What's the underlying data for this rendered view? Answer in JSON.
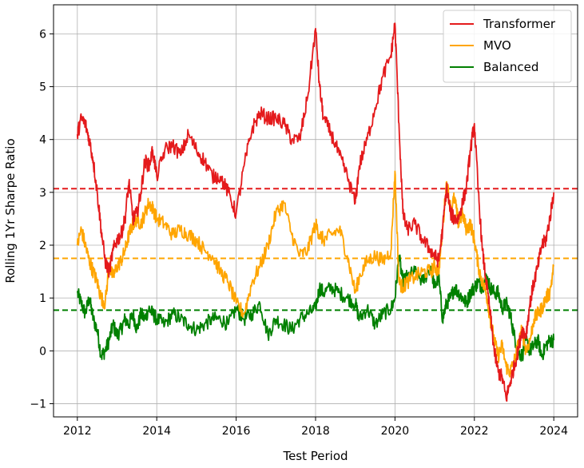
{
  "chart_data": {
    "type": "line",
    "title": "",
    "xlabel": "Test Period",
    "ylabel": "Rolling 1Yr Sharpe Ratio",
    "xlim": [
      2011.4,
      2024.6
    ],
    "ylim": [
      -1.25,
      6.55
    ],
    "x_ticks": [
      2012,
      2014,
      2016,
      2018,
      2020,
      2022,
      2024
    ],
    "y_ticks": [
      -1,
      0,
      1,
      2,
      3,
      4,
      5,
      6
    ],
    "grid": true,
    "legend_position": "top-right",
    "series": [
      {
        "name": "Transformer",
        "color": "#e41a1c",
        "mean": 3.07,
        "x": [
          2012.0,
          2012.1,
          2012.2,
          2012.3,
          2012.4,
          2012.5,
          2012.6,
          2012.7,
          2012.8,
          2012.9,
          2013.0,
          2013.1,
          2013.2,
          2013.3,
          2013.4,
          2013.5,
          2013.6,
          2013.7,
          2013.8,
          2013.9,
          2014.0,
          2014.2,
          2014.4,
          2014.6,
          2014.8,
          2015.0,
          2015.2,
          2015.4,
          2015.6,
          2015.8,
          2016.0,
          2016.2,
          2016.4,
          2016.6,
          2016.8,
          2017.0,
          2017.2,
          2017.4,
          2017.6,
          2017.8,
          2018.0,
          2018.1,
          2018.2,
          2018.4,
          2018.6,
          2018.8,
          2019.0,
          2019.1,
          2019.3,
          2019.5,
          2019.7,
          2019.9,
          2020.0,
          2020.1,
          2020.2,
          2020.3,
          2020.5,
          2020.7,
          2020.9,
          2021.0,
          2021.1,
          2021.2,
          2021.3,
          2021.4,
          2021.5,
          2021.6,
          2021.7,
          2021.8,
          2021.9,
          2022.0,
          2022.1,
          2022.2,
          2022.3,
          2022.4,
          2022.5,
          2022.6,
          2022.7,
          2022.8,
          2022.9,
          2023.0,
          2023.1,
          2023.2,
          2023.3,
          2023.4,
          2023.5,
          2023.6,
          2023.7,
          2023.8,
          2023.9,
          2024.0
        ],
        "y": [
          4.1,
          4.4,
          4.3,
          4.0,
          3.6,
          3.0,
          2.3,
          1.7,
          1.5,
          1.9,
          2.1,
          2.2,
          2.5,
          3.2,
          2.5,
          2.6,
          3.0,
          3.6,
          3.5,
          3.8,
          3.3,
          3.8,
          3.9,
          3.7,
          4.1,
          3.8,
          3.6,
          3.3,
          3.3,
          3.0,
          2.6,
          3.5,
          4.2,
          4.5,
          4.4,
          4.4,
          4.3,
          4.0,
          4.0,
          4.8,
          6.1,
          5.0,
          4.4,
          4.1,
          3.7,
          3.3,
          2.8,
          3.5,
          4.0,
          4.6,
          5.2,
          5.6,
          6.2,
          4.3,
          2.6,
          2.3,
          2.4,
          2.1,
          1.9,
          1.8,
          1.7,
          2.3,
          3.1,
          2.6,
          2.5,
          2.5,
          2.8,
          3.1,
          3.8,
          4.3,
          3.0,
          1.9,
          1.3,
          0.7,
          0.0,
          -0.4,
          -0.5,
          -0.9,
          -0.6,
          -0.3,
          0.0,
          0.4,
          0.3,
          0.9,
          1.3,
          1.6,
          2.0,
          2.1,
          2.5,
          3.0
        ]
      },
      {
        "name": "MVO",
        "color": "#ffa500",
        "mean": 1.75,
        "x": [
          2012.0,
          2012.1,
          2012.2,
          2012.3,
          2012.4,
          2012.5,
          2012.6,
          2012.7,
          2012.8,
          2012.9,
          2013.0,
          2013.1,
          2013.2,
          2013.3,
          2013.4,
          2013.5,
          2013.6,
          2013.7,
          2013.8,
          2013.9,
          2014.0,
          2014.2,
          2014.4,
          2014.6,
          2014.8,
          2015.0,
          2015.2,
          2015.4,
          2015.6,
          2015.8,
          2016.0,
          2016.2,
          2016.4,
          2016.6,
          2016.8,
          2017.0,
          2017.2,
          2017.4,
          2017.6,
          2017.8,
          2018.0,
          2018.1,
          2018.2,
          2018.4,
          2018.6,
          2018.8,
          2019.0,
          2019.1,
          2019.3,
          2019.5,
          2019.7,
          2019.9,
          2020.0,
          2020.1,
          2020.2,
          2020.3,
          2020.5,
          2020.7,
          2020.9,
          2021.0,
          2021.1,
          2021.2,
          2021.3,
          2021.4,
          2021.5,
          2021.6,
          2021.7,
          2021.8,
          2021.9,
          2022.0,
          2022.1,
          2022.2,
          2022.3,
          2022.4,
          2022.5,
          2022.6,
          2022.7,
          2022.8,
          2022.9,
          2023.0,
          2023.1,
          2023.2,
          2023.3,
          2023.4,
          2023.5,
          2023.6,
          2023.7,
          2023.8,
          2023.9,
          2024.0
        ],
        "y": [
          2.0,
          2.3,
          2.0,
          1.7,
          1.5,
          1.3,
          1.0,
          0.9,
          1.6,
          1.4,
          1.6,
          1.7,
          1.9,
          2.2,
          2.4,
          2.5,
          2.4,
          2.6,
          2.8,
          2.7,
          2.5,
          2.4,
          2.2,
          2.3,
          2.2,
          2.1,
          1.9,
          1.8,
          1.5,
          1.3,
          0.9,
          0.7,
          1.3,
          1.6,
          2.0,
          2.6,
          2.8,
          2.2,
          1.8,
          1.9,
          2.4,
          2.2,
          2.1,
          2.2,
          2.3,
          1.8,
          1.1,
          1.4,
          1.7,
          1.8,
          1.7,
          1.9,
          3.4,
          1.3,
          1.2,
          1.3,
          1.4,
          1.5,
          1.5,
          1.6,
          1.5,
          2.3,
          3.2,
          2.7,
          2.9,
          2.4,
          2.6,
          2.3,
          2.4,
          2.1,
          1.6,
          1.3,
          1.1,
          0.6,
          0.2,
          -0.1,
          0.1,
          -0.3,
          -0.4,
          -0.2,
          0.1,
          0.4,
          0.0,
          0.2,
          0.6,
          0.7,
          0.8,
          1.0,
          1.1,
          1.6
        ]
      },
      {
        "name": "Balanced",
        "color": "#008000",
        "mean": 0.77,
        "x": [
          2012.0,
          2012.1,
          2012.2,
          2012.3,
          2012.4,
          2012.5,
          2012.6,
          2012.7,
          2012.8,
          2012.9,
          2013.0,
          2013.1,
          2013.2,
          2013.3,
          2013.4,
          2013.5,
          2013.6,
          2013.7,
          2013.8,
          2013.9,
          2014.0,
          2014.2,
          2014.4,
          2014.6,
          2014.8,
          2015.0,
          2015.2,
          2015.4,
          2015.6,
          2015.8,
          2016.0,
          2016.2,
          2016.4,
          2016.6,
          2016.8,
          2017.0,
          2017.2,
          2017.4,
          2017.6,
          2017.8,
          2018.0,
          2018.1,
          2018.2,
          2018.4,
          2018.6,
          2018.8,
          2019.0,
          2019.1,
          2019.3,
          2019.5,
          2019.7,
          2019.9,
          2020.0,
          2020.1,
          2020.2,
          2020.3,
          2020.5,
          2020.7,
          2020.9,
          2021.0,
          2021.1,
          2021.2,
          2021.3,
          2021.4,
          2021.5,
          2021.6,
          2021.7,
          2021.8,
          2021.9,
          2022.0,
          2022.1,
          2022.2,
          2022.3,
          2022.4,
          2022.5,
          2022.6,
          2022.7,
          2022.8,
          2022.9,
          2023.0,
          2023.1,
          2023.2,
          2023.3,
          2023.4,
          2023.5,
          2023.6,
          2023.7,
          2023.8,
          2023.9,
          2024.0
        ],
        "y": [
          1.1,
          0.9,
          0.7,
          1.0,
          0.6,
          0.4,
          -0.1,
          0.0,
          0.2,
          0.5,
          0.3,
          0.4,
          0.6,
          0.5,
          0.7,
          0.4,
          0.7,
          0.6,
          0.8,
          0.7,
          0.6,
          0.5,
          0.7,
          0.6,
          0.5,
          0.4,
          0.5,
          0.6,
          0.6,
          0.5,
          0.8,
          0.6,
          0.7,
          0.9,
          0.3,
          0.6,
          0.5,
          0.4,
          0.6,
          0.7,
          0.8,
          1.2,
          1.1,
          1.2,
          1.1,
          1.0,
          0.9,
          0.6,
          0.8,
          0.5,
          0.7,
          0.8,
          1.0,
          1.8,
          1.3,
          1.4,
          1.5,
          1.3,
          1.6,
          1.2,
          1.4,
          0.6,
          0.9,
          1.0,
          1.2,
          1.1,
          1.0,
          0.9,
          1.1,
          1.2,
          1.3,
          1.2,
          1.4,
          1.2,
          1.1,
          1.1,
          0.8,
          0.9,
          0.7,
          0.3,
          0.0,
          -0.1,
          0.2,
          0.0,
          0.1,
          0.2,
          -0.1,
          0.1,
          0.2,
          0.2
        ]
      }
    ]
  }
}
